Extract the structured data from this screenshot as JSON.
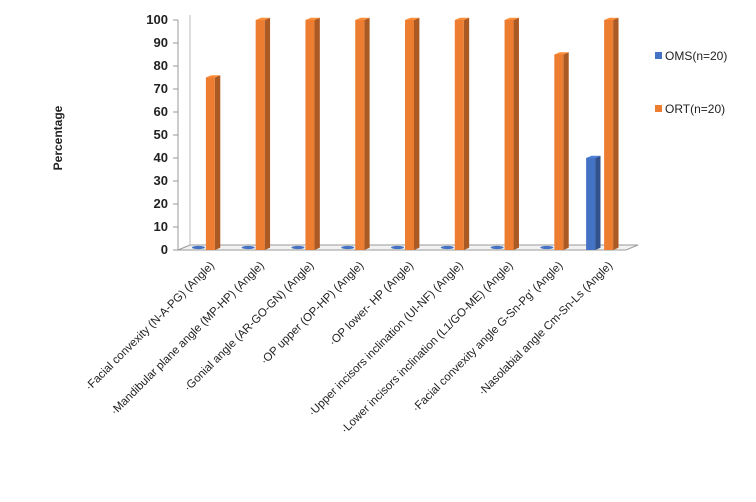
{
  "chart_data": {
    "type": "bar",
    "ylabel": "Percentage",
    "xlabel": "",
    "ylim": [
      0,
      100
    ],
    "yticks": [
      0,
      10,
      20,
      30,
      40,
      50,
      60,
      70,
      80,
      90,
      100
    ],
    "categories": [
      "·Facial convexity (N-A-PG) (Angle)",
      "·Mandibular plane angle (MP-HP) (Angle)",
      "·Gonial angle (AR-GO-GN) (Angle)",
      "·OP upper (OP-HP) (Angle)",
      "·OP lower- HP (Angle)",
      "·Upper incisors inclination (UI-NF) (Angle)",
      "·Lower incisors inclination (L1/GO-ME) (Angle)",
      "·Facial convexity angle G-Sn-Pg' (Angle)",
      "·Nasolabial angle Cm-Sn-Ls (Angle)"
    ],
    "series": [
      {
        "name": "OMS(n=20)",
        "color": "#4472c4",
        "values": [
          0,
          0,
          0,
          0,
          0,
          0,
          0,
          0,
          40
        ]
      },
      {
        "name": "ORT(n=20)",
        "color": "#ed7d31",
        "values": [
          75,
          100,
          100,
          100,
          100,
          100,
          100,
          85,
          100
        ]
      }
    ],
    "grid": false,
    "legend": "right"
  }
}
